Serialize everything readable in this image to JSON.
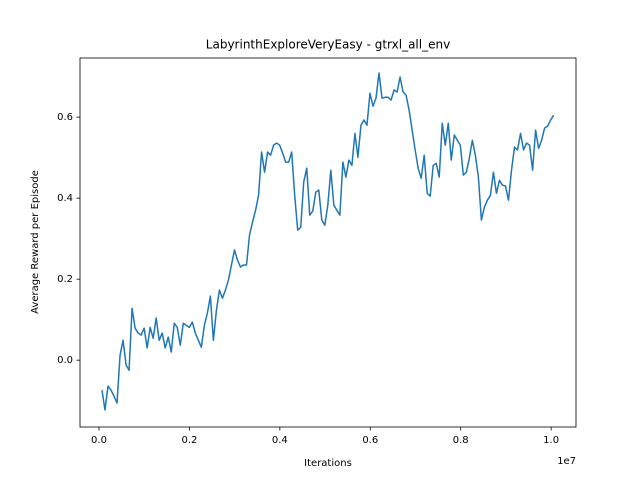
{
  "chart_data": {
    "type": "line",
    "title": "LabyrinthExploreVeryEasy - gtrxl_all_env",
    "xlabel": "Iterations",
    "ylabel": "Average Reward per Episode",
    "x_offset_label": "1e7",
    "xlim": [
      -420000,
      10550000
    ],
    "ylim": [
      -0.165,
      0.746
    ],
    "xticks": [
      {
        "value": 0,
        "label": "0.0"
      },
      {
        "value": 2000000,
        "label": "0.2"
      },
      {
        "value": 4000000,
        "label": "0.4"
      },
      {
        "value": 6000000,
        "label": "0.6"
      },
      {
        "value": 8000000,
        "label": "0.8"
      },
      {
        "value": 10000000,
        "label": "1.0"
      }
    ],
    "yticks": [
      {
        "value": 0,
        "label": "0.0"
      },
      0.2,
      0.4,
      0.6
    ],
    "grid": false,
    "x": [
      66000,
      132600,
      199200,
      265800,
      332400,
      399000,
      465600,
      532200,
      598800,
      665400,
      732000,
      798600,
      865200,
      931800,
      998400,
      1065000,
      1131600,
      1198200,
      1264800,
      1331400,
      1398000,
      1464600,
      1531200,
      1597800,
      1664400,
      1731000,
      1797600,
      1864200,
      1930800,
      1997400,
      2064000,
      2130600,
      2197200,
      2263800,
      2330400,
      2397000,
      2463600,
      2530200,
      2596800,
      2663400,
      2730000,
      2796600,
      2863200,
      2929800,
      2996400,
      3063000,
      3129600,
      3196200,
      3262800,
      3329400,
      3396000,
      3462600,
      3529200,
      3595800,
      3662400,
      3729000,
      3795600,
      3862200,
      3928800,
      3995400,
      4062000,
      4128600,
      4195200,
      4261800,
      4328400,
      4395000,
      4461600,
      4528200,
      4594800,
      4661400,
      4728000,
      4794600,
      4861200,
      4927800,
      4994400,
      5061000,
      5127600,
      5194200,
      5260800,
      5327400,
      5394000,
      5460600,
      5527200,
      5593800,
      5660400,
      5727000,
      5793600,
      5860200,
      5926800,
      5993400,
      6060000,
      6126600,
      6193200,
      6259800,
      6326400,
      6393000,
      6459600,
      6526200,
      6592800,
      6659400,
      6726000,
      6792600,
      6859200,
      6925800,
      6992400,
      7059000,
      7125600,
      7192200,
      7258800,
      7325400,
      7392000,
      7458600,
      7525200,
      7591800,
      7658400,
      7725000,
      7791600,
      7858200,
      7924800,
      7991400,
      8058000,
      8124600,
      8191200,
      8257800,
      8324400,
      8391000,
      8457600,
      8524200,
      8590800,
      8657400,
      8724000,
      8790600,
      8857200,
      8923800,
      8990400,
      9057000,
      9123600,
      9190200,
      9256800,
      9323400,
      9390000,
      9456600,
      9523200,
      9589800,
      9656400,
      9723000,
      9789600,
      9856200,
      9922800,
      9989400,
      10056000
    ],
    "series": [
      {
        "color": "#1f77b4",
        "values": [
          -0.074,
          -0.123,
          -0.064,
          -0.074,
          -0.089,
          -0.106,
          0.012,
          0.049,
          -0.012,
          -0.025,
          0.128,
          0.079,
          0.067,
          0.062,
          0.079,
          0.03,
          0.081,
          0.054,
          0.104,
          0.049,
          0.067,
          0.03,
          0.057,
          0.02,
          0.091,
          0.081,
          0.037,
          0.091,
          0.086,
          0.081,
          0.094,
          0.067,
          0.049,
          0.032,
          0.086,
          0.116,
          0.158,
          0.049,
          0.123,
          0.173,
          0.153,
          0.173,
          0.198,
          0.235,
          0.272,
          0.247,
          0.23,
          0.235,
          0.235,
          0.309,
          0.341,
          0.37,
          0.407,
          0.514,
          0.464,
          0.514,
          0.506,
          0.531,
          0.536,
          0.531,
          0.511,
          0.489,
          0.489,
          0.514,
          0.407,
          0.321,
          0.328,
          0.44,
          0.474,
          0.358,
          0.368,
          0.415,
          0.42,
          0.346,
          0.333,
          0.383,
          0.469,
          0.383,
          0.37,
          0.358,
          0.489,
          0.452,
          0.494,
          0.481,
          0.56,
          0.501,
          0.58,
          0.593,
          0.58,
          0.659,
          0.627,
          0.647,
          0.709,
          0.647,
          0.649,
          0.649,
          0.642,
          0.667,
          0.662,
          0.699,
          0.662,
          0.654,
          0.617,
          0.568,
          0.519,
          0.474,
          0.449,
          0.506,
          0.412,
          0.405,
          0.481,
          0.486,
          0.452,
          0.585,
          0.531,
          0.585,
          0.494,
          0.556,
          0.543,
          0.531,
          0.457,
          0.464,
          0.499,
          0.543,
          0.506,
          0.452,
          0.346,
          0.378,
          0.395,
          0.407,
          0.464,
          0.412,
          0.444,
          0.432,
          0.43,
          0.395,
          0.469,
          0.526,
          0.519,
          0.56,
          0.519,
          0.536,
          0.531,
          0.469,
          0.568,
          0.523,
          0.543,
          0.573,
          0.578,
          0.593,
          0.605
        ]
      }
    ]
  }
}
